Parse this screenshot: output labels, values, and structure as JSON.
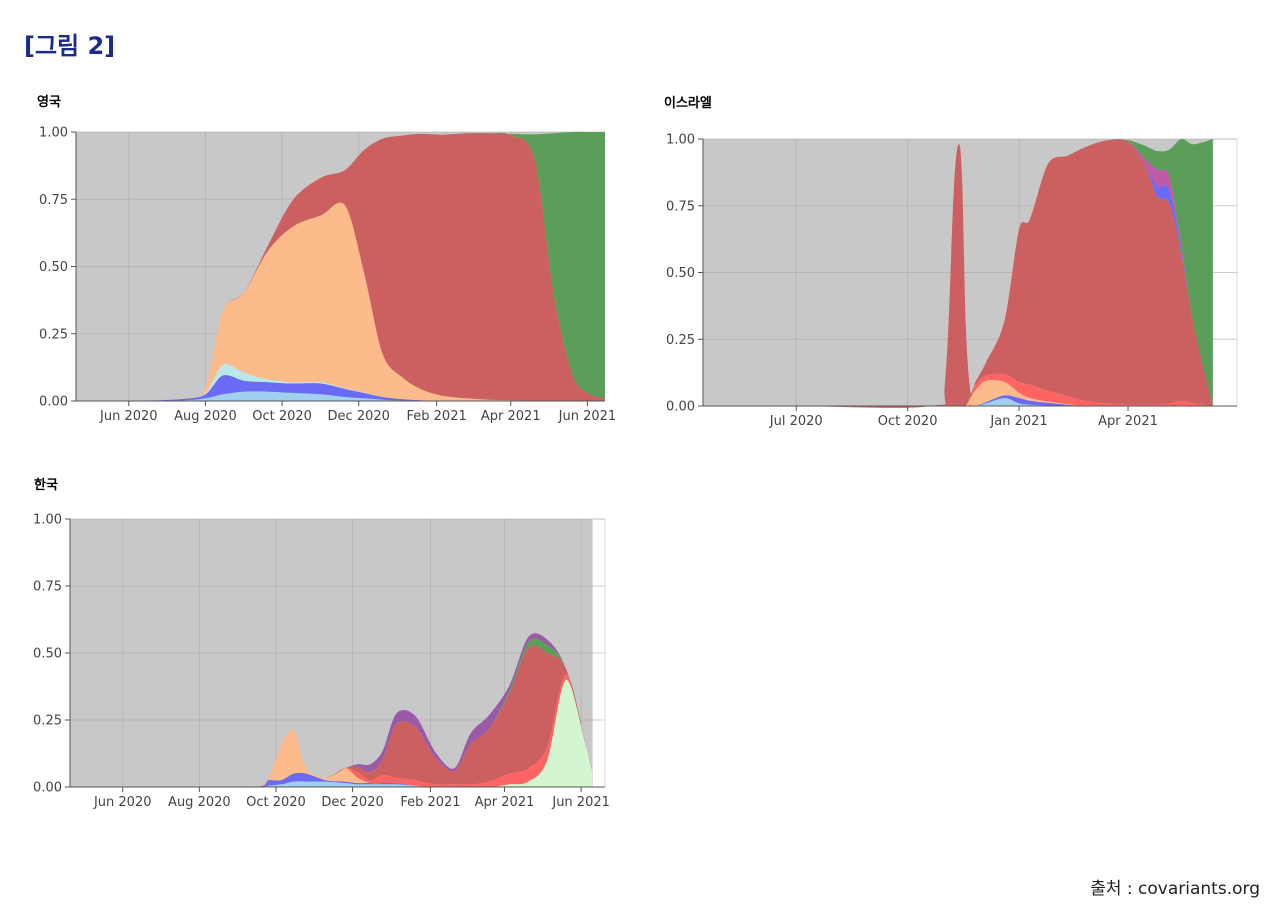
{
  "figure_title": "[그림 2]",
  "source": "출처 : covariants.org",
  "colors": {
    "other": "#c8c8c8",
    "alpha": "#cc5f5f",
    "eu1": "#fdbb8b",
    "delta": "#5a9e5a",
    "lightblue": "#9fd0f0",
    "blue": "#6a6af5",
    "purple": "#9a5aa8",
    "brightred": "#ff6464",
    "lightgreen": "#d3f5d0",
    "magenta": "#c05aa8",
    "cyan": "#b8e8e8",
    "lavender": "#c8c8e0",
    "grid": "#a8a8a8"
  },
  "chart_data": [
    {
      "id": "uk",
      "title": "영국",
      "type": "area",
      "stacked": true,
      "ylim": [
        0,
        1
      ],
      "yticks": [
        "0.00",
        "0.25",
        "0.50",
        "0.75",
        "1.00"
      ],
      "x": [
        "2020-04-20",
        "2020-06-01",
        "2020-07-15",
        "2020-08-01",
        "2020-08-15",
        "2020-09-01",
        "2020-09-20",
        "2020-10-10",
        "2020-11-01",
        "2020-11-20",
        "2020-12-05",
        "2020-12-20",
        "2021-01-05",
        "2021-01-20",
        "2021-02-05",
        "2021-02-25",
        "2021-03-15",
        "2021-04-01",
        "2021-04-20",
        "2021-05-05",
        "2021-05-20",
        "2021-06-01",
        "2021-06-15"
      ],
      "xticks": [
        {
          "date": "2020-06-01",
          "label": "Jun 2020"
        },
        {
          "date": "2020-08-01",
          "label": "Aug 2020"
        },
        {
          "date": "2020-10-01",
          "label": "Oct 2020"
        },
        {
          "date": "2020-12-01",
          "label": "Dec 2020"
        },
        {
          "date": "2021-02-01",
          "label": "Feb 2021"
        },
        {
          "date": "2021-04-01",
          "label": "Apr 2021"
        },
        {
          "date": "2021-06-01",
          "label": "Jun 2021"
        }
      ],
      "series": [
        {
          "color_key": "lightblue",
          "values": [
            0,
            0,
            0.003,
            0.01,
            0.025,
            0.035,
            0.035,
            0.03,
            0.025,
            0.015,
            0.01,
            0.005,
            0.002,
            0.001,
            0,
            0,
            0,
            0,
            0,
            0,
            0,
            0,
            0
          ]
        },
        {
          "color_key": "blue",
          "values": [
            0,
            0,
            0.005,
            0.015,
            0.07,
            0.04,
            0.035,
            0.035,
            0.04,
            0.03,
            0.02,
            0.01,
            0.005,
            0.002,
            0,
            0,
            0,
            0,
            0,
            0,
            0,
            0,
            0
          ]
        },
        {
          "color_key": "cyan",
          "values": [
            0,
            0,
            0,
            0.005,
            0.04,
            0.03,
            0.01,
            0.005,
            0.005,
            0.003,
            0.002,
            0,
            0,
            0,
            0,
            0,
            0,
            0,
            0,
            0,
            0,
            0,
            0
          ]
        },
        {
          "color_key": "eu1",
          "values": [
            0,
            0,
            0.002,
            0.02,
            0.2,
            0.3,
            0.48,
            0.58,
            0.62,
            0.68,
            0.45,
            0.16,
            0.08,
            0.04,
            0.02,
            0.01,
            0.005,
            0.003,
            0.001,
            0,
            0,
            0,
            0
          ]
        },
        {
          "color_key": "alpha",
          "values": [
            0,
            0,
            0,
            0,
            0,
            0,
            0.02,
            0.1,
            0.14,
            0.13,
            0.45,
            0.8,
            0.9,
            0.95,
            0.97,
            0.985,
            0.99,
            0.985,
            0.9,
            0.4,
            0.1,
            0.03,
            0.01
          ]
        },
        {
          "color_key": "delta",
          "values": [
            0,
            0,
            0,
            0,
            0,
            0,
            0,
            0,
            0,
            0,
            0,
            0,
            0,
            0,
            0,
            0,
            0,
            0.005,
            0.09,
            0.595,
            0.9,
            0.97,
            0.99
          ]
        }
      ]
    },
    {
      "id": "israel",
      "title": "이스라엘",
      "type": "area",
      "stacked": true,
      "ylim": [
        0,
        1
      ],
      "yticks": [
        "0.00",
        "0.25",
        "0.50",
        "0.75",
        "1.00"
      ],
      "x": [
        "2020-04-15",
        "2020-07-01",
        "2020-10-20",
        "2020-11-01",
        "2020-11-08",
        "2020-11-12",
        "2020-11-15",
        "2020-11-18",
        "2020-11-22",
        "2020-11-26",
        "2020-12-05",
        "2020-12-20",
        "2021-01-01",
        "2021-01-10",
        "2021-01-25",
        "2021-02-10",
        "2021-02-25",
        "2021-03-15",
        "2021-04-01",
        "2021-04-15",
        "2021-04-25",
        "2021-05-05",
        "2021-05-15",
        "2021-05-25",
        "2021-06-10"
      ],
      "xticks": [
        {
          "date": "2020-07-01",
          "label": "Jul 2020"
        },
        {
          "date": "2020-10-01",
          "label": "Oct 2020"
        },
        {
          "date": "2021-01-01",
          "label": "Jan 2021"
        },
        {
          "date": "2021-04-01",
          "label": "Apr 2021"
        }
      ],
      "series": [
        {
          "color_key": "lightblue",
          "values": [
            0,
            0,
            0,
            0,
            0,
            0,
            0,
            0,
            0,
            0,
            0.01,
            0.03,
            0.01,
            0.005,
            0.002,
            0,
            0,
            0,
            0,
            0,
            0,
            0,
            0,
            0,
            0
          ]
        },
        {
          "color_key": "blue",
          "values": [
            0,
            0,
            0,
            0,
            0,
            0,
            0,
            0,
            0,
            0,
            0.005,
            0.01,
            0.02,
            0.015,
            0.01,
            0.005,
            0,
            0,
            0,
            0,
            0,
            0,
            0,
            0,
            0
          ]
        },
        {
          "color_key": "eu1",
          "values": [
            0,
            0,
            0,
            0,
            0,
            0,
            0,
            0,
            0.03,
            0.06,
            0.08,
            0.05,
            0.02,
            0.01,
            0.005,
            0.002,
            0,
            0,
            0,
            0,
            0,
            0,
            0,
            0,
            0
          ]
        },
        {
          "color_key": "brightred",
          "values": [
            0,
            0,
            0,
            0,
            0,
            0,
            0,
            0,
            0.01,
            0.02,
            0.02,
            0.03,
            0.04,
            0.05,
            0.04,
            0.03,
            0.02,
            0.01,
            0.005,
            0.005,
            0.005,
            0.01,
            0.02,
            0.01,
            0
          ]
        },
        {
          "color_key": "alpha",
          "values": [
            0,
            0,
            0,
            0.1,
            0.8,
            0.98,
            0.85,
            0.3,
            0.01,
            0.01,
            0.05,
            0.2,
            0.57,
            0.62,
            0.85,
            0.9,
            0.95,
            0.985,
            0.985,
            0.9,
            0.78,
            0.75,
            0.55,
            0.3,
            0
          ]
        },
        {
          "color_key": "blue",
          "values": [
            0,
            0,
            0,
            0,
            0,
            0,
            0,
            0,
            0,
            0,
            0,
            0,
            0,
            0,
            0,
            0,
            0,
            0,
            0,
            0,
            0.04,
            0.05,
            0.02,
            0,
            0
          ]
        },
        {
          "color_key": "magenta",
          "values": [
            0,
            0,
            0,
            0,
            0,
            0,
            0,
            0,
            0,
            0,
            0,
            0,
            0,
            0,
            0,
            0,
            0,
            0,
            0,
            0.02,
            0.06,
            0.05,
            0.01,
            0,
            0
          ]
        },
        {
          "color_key": "delta",
          "values": [
            0,
            0,
            0,
            0,
            0,
            0,
            0,
            0,
            0,
            0,
            0,
            0,
            0,
            0,
            0,
            0,
            0,
            0,
            0.005,
            0.05,
            0.07,
            0.1,
            0.4,
            0.67,
            1
          ]
        }
      ]
    },
    {
      "id": "korea",
      "title": "한국",
      "type": "area",
      "stacked": true,
      "ylim": [
        0,
        1
      ],
      "yticks": [
        "0.00",
        "0.25",
        "0.50",
        "0.75",
        "1.00"
      ],
      "x": [
        "2020-04-20",
        "2020-06-01",
        "2020-08-01",
        "2020-09-15",
        "2020-09-25",
        "2020-10-05",
        "2020-10-15",
        "2020-10-25",
        "2020-11-10",
        "2020-11-25",
        "2020-12-05",
        "2020-12-15",
        "2020-12-25",
        "2021-01-05",
        "2021-01-20",
        "2021-02-05",
        "2021-02-20",
        "2021-03-05",
        "2021-03-20",
        "2021-04-05",
        "2021-04-20",
        "2021-05-05",
        "2021-05-20",
        "2021-06-05",
        "2021-06-10"
      ],
      "xticks": [
        {
          "date": "2020-06-01",
          "label": "Jun 2020"
        },
        {
          "date": "2020-08-01",
          "label": "Aug 2020"
        },
        {
          "date": "2020-10-01",
          "label": "Oct 2020"
        },
        {
          "date": "2020-12-01",
          "label": "Dec 2020"
        },
        {
          "date": "2021-02-01",
          "label": "Feb 2021"
        },
        {
          "date": "2021-04-01",
          "label": "Apr 2021"
        },
        {
          "date": "2021-06-01",
          "label": "Jun 2021"
        }
      ],
      "series": [
        {
          "color_key": "lightblue",
          "values": [
            0,
            0,
            0,
            0,
            0.005,
            0.01,
            0.02,
            0.02,
            0.02,
            0.015,
            0.01,
            0.01,
            0.01,
            0.01,
            0.005,
            0,
            0,
            0,
            0,
            0,
            0,
            0,
            0,
            0,
            0
          ]
        },
        {
          "color_key": "blue",
          "values": [
            0,
            0,
            0,
            0,
            0.02,
            0.015,
            0.03,
            0.03,
            0.005,
            0.005,
            0.005,
            0.005,
            0.005,
            0.005,
            0,
            0,
            0,
            0,
            0,
            0,
            0,
            0,
            0,
            0,
            0
          ]
        },
        {
          "color_key": "lavender",
          "values": [
            0,
            0,
            0,
            0,
            0,
            0,
            0,
            0,
            0,
            0,
            0,
            0,
            0,
            0,
            0,
            0,
            0,
            0,
            0,
            0,
            0,
            0,
            0,
            0,
            0
          ]
        },
        {
          "color_key": "eu1",
          "values": [
            0,
            0,
            0,
            0,
            0.005,
            0.13,
            0.16,
            0.02,
            0.01,
            0.05,
            0.02,
            0,
            0,
            0,
            0,
            0,
            0,
            0,
            0,
            0,
            0,
            0,
            0,
            0,
            0
          ]
        },
        {
          "color_key": "lightgreen",
          "values": [
            0,
            0,
            0,
            0,
            0,
            0,
            0,
            0,
            0,
            0,
            0,
            0,
            0,
            0,
            0,
            0,
            0,
            0,
            0,
            0.01,
            0.02,
            0.1,
            0.4,
            0.15,
            0.05
          ]
        },
        {
          "color_key": "brightred",
          "values": [
            0,
            0,
            0,
            0,
            0,
            0,
            0,
            0,
            0,
            0,
            0.02,
            0.01,
            0.03,
            0.02,
            0.02,
            0.01,
            0.01,
            0.01,
            0.02,
            0.04,
            0.05,
            0.05,
            0.02,
            0,
            0
          ]
        },
        {
          "color_key": "alpha",
          "values": [
            0,
            0,
            0,
            0,
            0,
            0,
            0,
            0,
            0,
            0,
            0.02,
            0.03,
            0.06,
            0.2,
            0.2,
            0.1,
            0.05,
            0.15,
            0.2,
            0.3,
            0.45,
            0.35,
            0.02,
            0,
            0
          ]
        },
        {
          "color_key": "delta",
          "values": [
            0,
            0,
            0,
            0,
            0,
            0,
            0,
            0,
            0,
            0,
            0,
            0,
            0,
            0,
            0,
            0,
            0,
            0,
            0,
            0.01,
            0.02,
            0.03,
            0,
            0,
            0
          ]
        },
        {
          "color_key": "purple",
          "values": [
            0,
            0,
            0,
            0,
            0,
            0,
            0,
            0,
            0,
            0,
            0.01,
            0.03,
            0.03,
            0.04,
            0.04,
            0.02,
            0.01,
            0.04,
            0.05,
            0.02,
            0.02,
            0.02,
            0,
            0,
            0
          ]
        }
      ]
    }
  ]
}
